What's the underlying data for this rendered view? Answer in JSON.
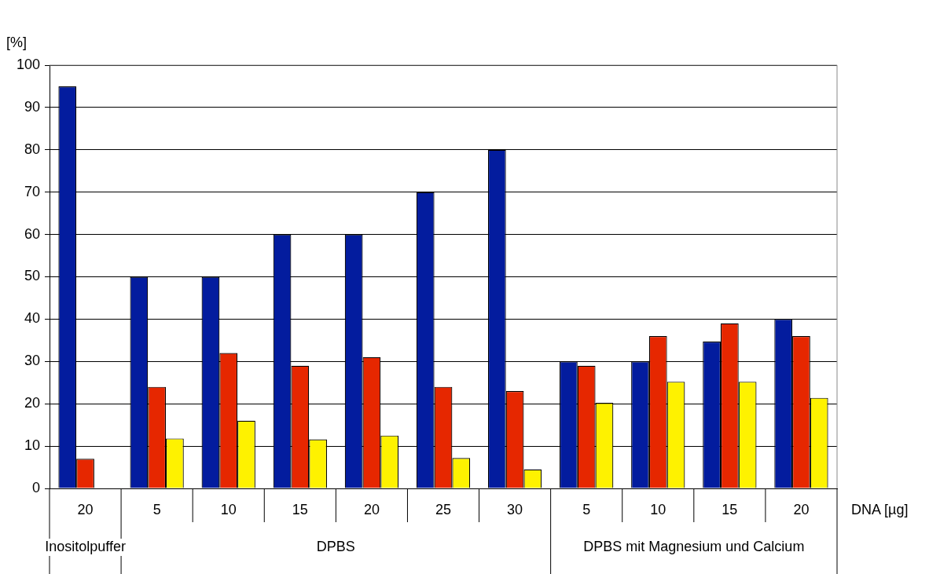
{
  "chart_data": {
    "type": "bar",
    "ylabel": "[%]",
    "xlabel": "DNA [µg]",
    "categories": [
      "20",
      "5",
      "10",
      "15",
      "20",
      "25",
      "30",
      "5",
      "10",
      "15",
      "20"
    ],
    "series": [
      {
        "color": "#031c9e",
        "values": [
          95,
          50,
          50,
          60,
          60,
          70,
          80,
          30,
          30,
          34.7,
          40
        ]
      },
      {
        "color": "#e62700",
        "values": [
          7,
          24,
          32,
          29,
          31,
          24,
          23,
          29,
          36,
          39,
          36
        ]
      },
      {
        "color": "#fef200",
        "values": [
          null,
          11.8,
          16,
          11.6,
          12.5,
          7.2,
          4.5,
          20.2,
          25.2,
          25.2,
          21.4
        ]
      }
    ],
    "ylim": [
      0,
      100
    ],
    "yticks": [
      0,
      10,
      20,
      30,
      40,
      50,
      60,
      70,
      80,
      90,
      100
    ],
    "grid": "y",
    "annotations": [
      "Inositolpuffer",
      "DPBS",
      "DPBS mit Magnesium und Calcium"
    ]
  }
}
